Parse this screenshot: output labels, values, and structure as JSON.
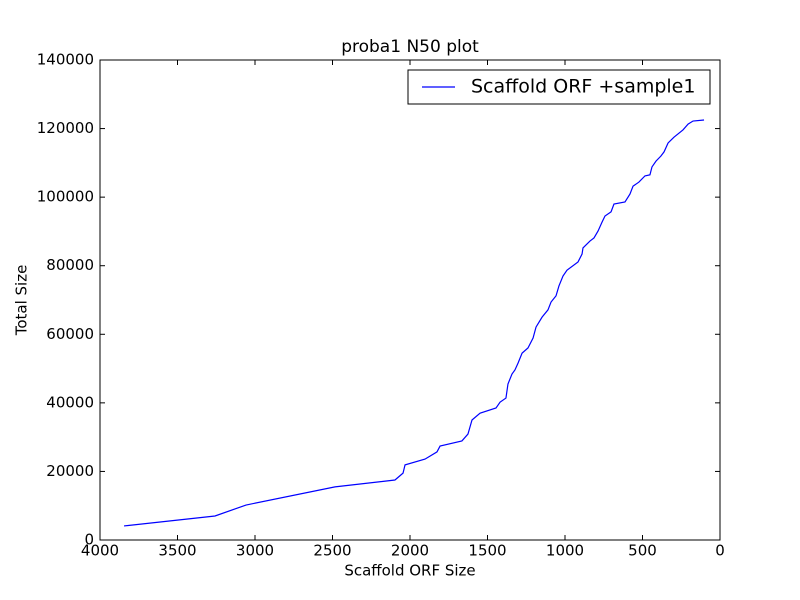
{
  "chart_data": {
    "type": "line",
    "title": "proba1 N50 plot",
    "x_label": "Scaffold ORF Size",
    "y_label": "Total Size",
    "xlim": [
      4000,
      0
    ],
    "ylim": [
      0,
      140000
    ],
    "xticks": [
      4000,
      3500,
      3000,
      2500,
      2000,
      1500,
      1000,
      500,
      0
    ],
    "yticks": [
      0,
      20000,
      40000,
      60000,
      80000,
      100000,
      120000,
      140000
    ],
    "legend": "upper right",
    "x": [
      3845,
      3258,
      3058,
      2484,
      2097,
      2045,
      2032,
      1903,
      1826,
      1806,
      1665,
      1626,
      1600,
      1548,
      1445,
      1419,
      1381,
      1368,
      1342,
      1323,
      1303,
      1277,
      1239,
      1206,
      1187,
      1148,
      1110,
      1090,
      1058,
      1039,
      1013,
      987,
      916,
      890,
      884,
      839,
      813,
      787,
      761,
      742,
      703,
      684,
      613,
      581,
      561,
      523,
      484,
      452,
      439,
      413,
      381,
      361,
      335,
      297,
      239,
      206,
      174,
      103
    ],
    "series": [
      {
        "name": "Scaffold ORF +sample1",
        "color": "#0000ff",
        "values": [
          4100,
          7000,
          10200,
          15500,
          17500,
          19500,
          21900,
          23600,
          25700,
          27400,
          28900,
          30900,
          35000,
          37000,
          38500,
          40200,
          41400,
          45500,
          48400,
          49600,
          51600,
          54500,
          56000,
          58900,
          62100,
          65000,
          67100,
          69400,
          71200,
          74100,
          77000,
          78700,
          81100,
          83400,
          85200,
          87200,
          88100,
          90100,
          92700,
          94500,
          95700,
          98000,
          98600,
          100900,
          103200,
          104400,
          106200,
          106500,
          108800,
          110500,
          112000,
          113200,
          115800,
          117500,
          119600,
          121300,
          122200,
          122500
        ]
      }
    ]
  }
}
